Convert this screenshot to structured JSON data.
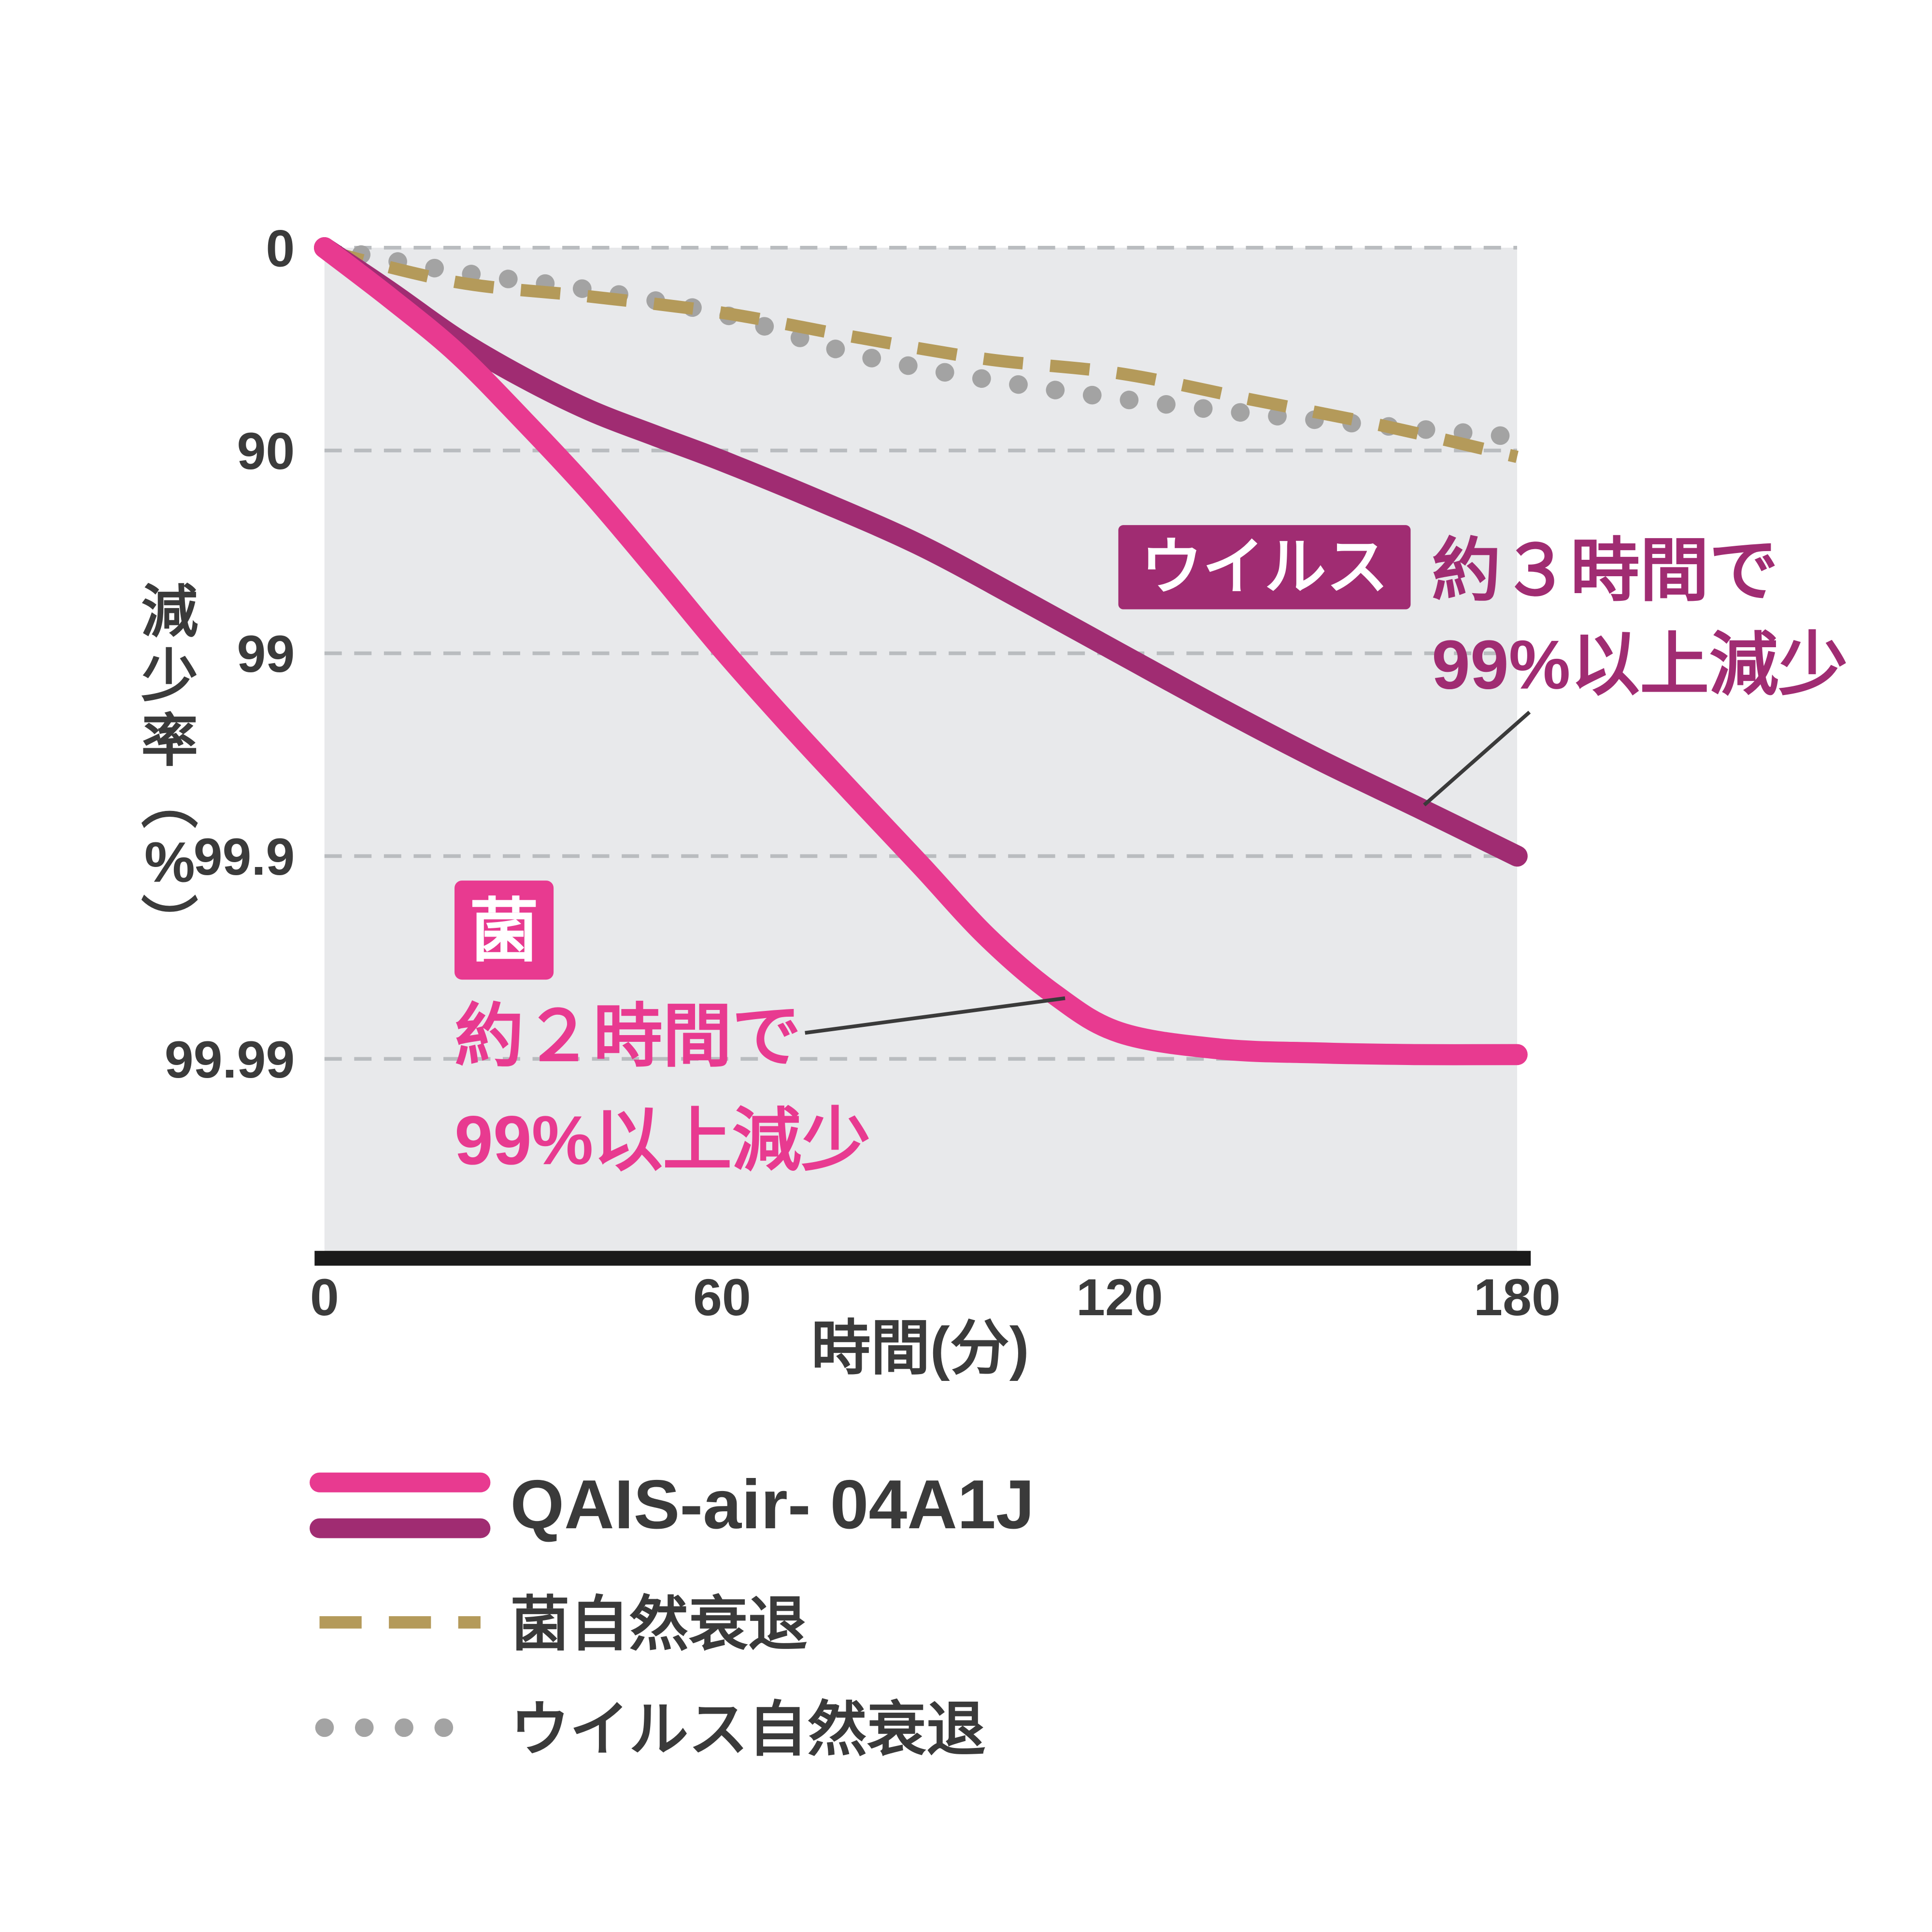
{
  "chart_data": {
    "type": "line",
    "title": "",
    "xlabel": "時間(分)",
    "ylabel": "減少率(%)",
    "ylabel_vertical_chars": [
      "減",
      "少",
      "率",
      "︵",
      "%",
      "︶"
    ],
    "xlim": [
      0,
      180
    ],
    "y_scale": "log-survival (100-reduction on log10 scale)",
    "grid": "dashed horizontal gridlines, light gray plot background",
    "legend_position": "below chart",
    "x_ticks": [
      {
        "value": 0,
        "label": "0"
      },
      {
        "value": 60,
        "label": "60"
      },
      {
        "value": 120,
        "label": "120"
      },
      {
        "value": 180,
        "label": "180"
      }
    ],
    "y_ticks": [
      {
        "value": 0,
        "label": "0"
      },
      {
        "value": 90,
        "label": "90"
      },
      {
        "value": 99,
        "label": "99"
      },
      {
        "value": 99.9,
        "label": "99.9"
      },
      {
        "value": 99.99,
        "label": "99.99"
      }
    ],
    "series": [
      {
        "id": "virus-natural-decay",
        "name": "ウイルス自然衰退",
        "color": "#a3a3a3",
        "style": "dotted",
        "points": [
          [
            0,
            0
          ],
          [
            20,
            24
          ],
          [
            40,
            38
          ],
          [
            60,
            53
          ],
          [
            80,
            70.1
          ],
          [
            100,
            77.6
          ],
          [
            120,
            82
          ],
          [
            140,
            84.8
          ],
          [
            160,
            86.8
          ],
          [
            178,
            88.2
          ]
        ]
      },
      {
        "id": "bacteria-natural-decay",
        "name": "菌自然衰退",
        "color": "#b49a5a",
        "style": "dashed",
        "points": [
          [
            0,
            3
          ],
          [
            20,
            32.4
          ],
          [
            40,
            42.5
          ],
          [
            60,
            52.2
          ],
          [
            80,
            63.7
          ],
          [
            100,
            71.8
          ],
          [
            120,
            76
          ],
          [
            140,
            82.2
          ],
          [
            160,
            86.8
          ],
          [
            180,
            90.7
          ]
        ]
      },
      {
        "id": "virus-qais",
        "name": "QAIS-air- 04A1J ウイルス",
        "color": "#a02c72",
        "style": "solid",
        "points": [
          [
            0,
            0
          ],
          [
            10,
            39.7
          ],
          [
            20,
            64.5
          ],
          [
            30,
            77.1
          ],
          [
            40,
            84.2
          ],
          [
            50,
            88.2
          ],
          [
            60,
            91.1
          ],
          [
            75,
            94.4
          ],
          [
            90,
            96.6
          ],
          [
            105,
            98.14
          ],
          [
            120,
            99.0
          ],
          [
            135,
            99.46
          ],
          [
            150,
            99.7
          ],
          [
            165,
            99.826
          ],
          [
            180,
            99.9
          ]
        ]
      },
      {
        "id": "bacteria-qais",
        "name": "QAIS-air- 04A1J 菌",
        "color": "#e83a90",
        "style": "solid",
        "points": [
          [
            0,
            0
          ],
          [
            10,
            43.8
          ],
          [
            20,
            69.8
          ],
          [
            30,
            85.9
          ],
          [
            40,
            93.7
          ],
          [
            50,
            97.4
          ],
          [
            60,
            98.95
          ],
          [
            70,
            99.55
          ],
          [
            80,
            99.8
          ],
          [
            90,
            99.91
          ],
          [
            100,
            99.96
          ],
          [
            110,
            99.979
          ],
          [
            120,
            99.9865
          ],
          [
            135,
            99.9888
          ],
          [
            150,
            99.9893
          ],
          [
            165,
            99.9895
          ],
          [
            180,
            99.9895
          ]
        ]
      }
    ]
  },
  "annotations": {
    "virus": {
      "badge": "ウイルス",
      "line1": "約３時間で",
      "line2": "99%以上減少",
      "color": "#a02c72"
    },
    "bacteria": {
      "badge": "菌",
      "line1": "約２時間で",
      "line2": "99%以上減少",
      "color": "#e83a90"
    }
  },
  "legend": {
    "items": [
      {
        "label": "QAIS-air- 04A1J"
      },
      {
        "label": "菌自然衰退"
      },
      {
        "label": "ウイルス自然衰退"
      }
    ]
  }
}
